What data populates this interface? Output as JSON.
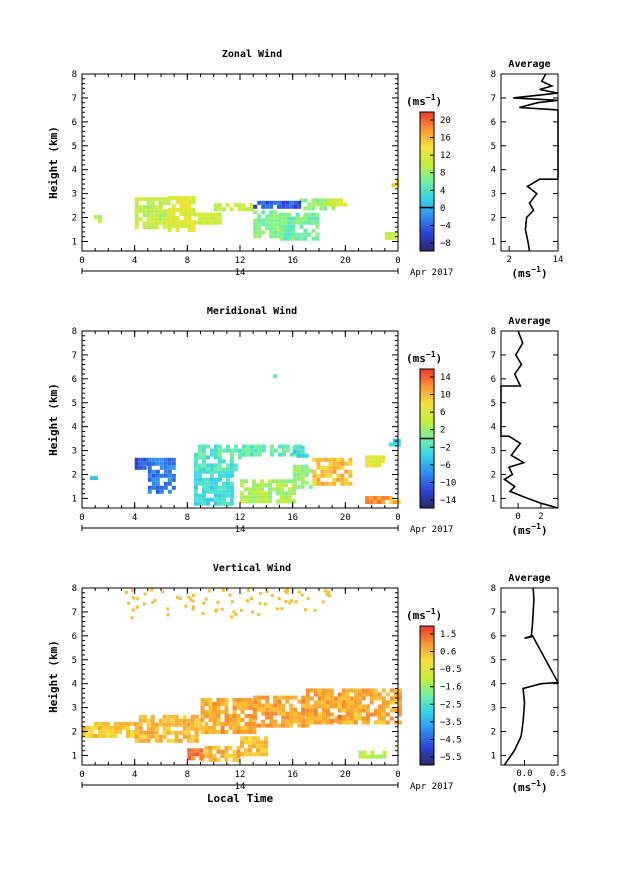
{
  "chart_data": [
    {
      "type": "heatmap",
      "title": "Zonal Wind",
      "ylabel": "Height (km)",
      "xlabel": "",
      "xlim": [
        0,
        24
      ],
      "ylim": [
        0.6,
        8
      ],
      "x_ticks": [
        "0",
        "4",
        "8",
        "12",
        "16",
        "20",
        "0"
      ],
      "y_ticks": [
        "1",
        "2",
        "3",
        "4",
        "5",
        "6",
        "7",
        "8"
      ],
      "date_label": "14",
      "month_label": "Apr 2017",
      "colorbar": {
        "unit": "(ms",
        "unit_exp": "−1",
        "ticks": [
          "20",
          "16",
          "12",
          "8",
          "4",
          "0",
          "−4",
          "−8"
        ],
        "range": [
          -10,
          22
        ],
        "zero_line": 0
      },
      "average": {
        "title": "Average",
        "xlabel": "(ms",
        "xlabel_exp": "−1",
        "x_ticks": [
          "2",
          "14"
        ],
        "xlim": [
          0,
          14
        ],
        "profile": [
          [
            7.0,
            0.6
          ],
          [
            6.6,
            1.0
          ],
          [
            6.0,
            1.5
          ],
          [
            6.3,
            2.0
          ],
          [
            8.0,
            2.3
          ],
          [
            7.0,
            2.6
          ],
          [
            8.8,
            3.0
          ],
          [
            6.5,
            3.3
          ],
          [
            9.5,
            3.6
          ],
          [
            14,
            3.6
          ],
          [
            14,
            6.5
          ],
          [
            4.5,
            6.6
          ],
          [
            9.0,
            6.8
          ],
          [
            14,
            6.9
          ],
          [
            3.0,
            7.0
          ],
          [
            14,
            7.2
          ],
          [
            9.5,
            7.35
          ],
          [
            12.5,
            7.5
          ],
          [
            10.0,
            7.7
          ],
          [
            11.0,
            8.0
          ]
        ]
      },
      "patches": [
        {
          "t0": 0.9,
          "t1": 1.5,
          "h0": 1.9,
          "h1": 2.1,
          "value": 9
        },
        {
          "t0": 4.0,
          "t1": 6.5,
          "h0": 1.6,
          "h1": 2.85,
          "value": 10
        },
        {
          "t0": 6.5,
          "t1": 8.5,
          "h0": 1.5,
          "h1": 2.9,
          "value": 12
        },
        {
          "t0": 8.5,
          "t1": 10.5,
          "h0": 1.8,
          "h1": 2.2,
          "value": 11
        },
        {
          "t0": 10.0,
          "t1": 13.0,
          "h0": 2.3,
          "h1": 2.6,
          "value": 10
        },
        {
          "t0": 13.0,
          "t1": 15.0,
          "h0": 1.2,
          "h1": 2.3,
          "value": 7
        },
        {
          "t0": 15.0,
          "t1": 18.0,
          "h0": 1.1,
          "h1": 2.2,
          "value": 6
        },
        {
          "t0": 16.5,
          "t1": 19.0,
          "h0": 2.4,
          "h1": 2.8,
          "value": 7
        },
        {
          "t0": 18.0,
          "t1": 20.0,
          "h0": 2.5,
          "h1": 2.8,
          "value": 11
        },
        {
          "t0": 13.0,
          "t1": 16.5,
          "h0": 2.4,
          "h1": 2.7,
          "value": -5
        },
        {
          "t0": 23.0,
          "t1": 23.8,
          "h0": 1.1,
          "h1": 1.4,
          "value": 11
        },
        {
          "t0": 23.5,
          "t1": 24.0,
          "h0": 3.3,
          "h1": 3.6,
          "value": 15
        }
      ]
    },
    {
      "type": "heatmap",
      "title": "Meridional Wind",
      "ylabel": "Height (km)",
      "xlabel": "",
      "xlim": [
        0,
        24
      ],
      "ylim": [
        0.6,
        8
      ],
      "x_ticks": [
        "0",
        "4",
        "8",
        "12",
        "16",
        "20",
        "0"
      ],
      "y_ticks": [
        "1",
        "2",
        "3",
        "4",
        "5",
        "6",
        "7",
        "8"
      ],
      "date_label": "14",
      "month_label": "Apr 2017",
      "colorbar": {
        "unit": "(ms",
        "unit_exp": "−1",
        "ticks": [
          "14",
          "10",
          "6",
          "2",
          "−2",
          "−6",
          "−10",
          "−14"
        ],
        "range": [
          -16,
          16
        ],
        "zero_line": 0
      },
      "average": {
        "title": "Average",
        "xlabel": "(ms",
        "xlabel_exp": "−1",
        "x_ticks": [
          "0",
          "2"
        ],
        "xlim": [
          -1.5,
          3.5
        ],
        "profile": [
          [
            3.5,
            0.6
          ],
          [
            2.0,
            0.8
          ],
          [
            0.3,
            1.1
          ],
          [
            -0.7,
            1.3
          ],
          [
            -0.3,
            1.5
          ],
          [
            -1.2,
            1.8
          ],
          [
            -0.5,
            2.0
          ],
          [
            -0.8,
            2.3
          ],
          [
            0.5,
            2.5
          ],
          [
            -0.6,
            2.8
          ],
          [
            -0.3,
            3.0
          ],
          [
            0.2,
            3.3
          ],
          [
            -0.8,
            3.6
          ],
          [
            -1.5,
            3.6
          ],
          [
            -1.5,
            5.7
          ],
          [
            0.2,
            5.7
          ],
          [
            -0.3,
            6.2
          ],
          [
            0.3,
            6.6
          ],
          [
            -0.2,
            7.0
          ],
          [
            0.4,
            7.5
          ],
          [
            0.0,
            8.0
          ]
        ]
      },
      "patches": [
        {
          "t0": 0.6,
          "t1": 1.2,
          "h0": 1.8,
          "h1": 2.1,
          "value": -6
        },
        {
          "t0": 4.0,
          "t1": 5.0,
          "h0": 2.2,
          "h1": 2.7,
          "value": -11
        },
        {
          "t0": 5.0,
          "t1": 7.0,
          "h0": 1.3,
          "h1": 2.7,
          "value": -9
        },
        {
          "t0": 8.5,
          "t1": 11.5,
          "h0": 0.8,
          "h1": 2.2,
          "value": -3
        },
        {
          "t0": 8.5,
          "t1": 12.0,
          "h0": 2.2,
          "h1": 2.8,
          "value": -2
        },
        {
          "t0": 8.5,
          "t1": 16.5,
          "h0": 2.8,
          "h1": 3.25,
          "value": -1
        },
        {
          "t0": 12.0,
          "t1": 16.0,
          "h0": 0.8,
          "h1": 1.8,
          "value": 3
        },
        {
          "t0": 16.0,
          "t1": 17.5,
          "h0": 1.5,
          "h1": 2.4,
          "value": 2
        },
        {
          "t0": 17.5,
          "t1": 20.5,
          "h0": 1.6,
          "h1": 2.7,
          "value": 10
        },
        {
          "t0": 16.0,
          "t1": 17.0,
          "h0": 2.8,
          "h1": 3.2,
          "value": -3
        },
        {
          "t0": 21.5,
          "t1": 23.0,
          "h0": 2.4,
          "h1": 2.8,
          "value": 6
        },
        {
          "t0": 21.5,
          "t1": 23.3,
          "h0": 0.8,
          "h1": 1.1,
          "value": 12
        },
        {
          "t0": 23.3,
          "t1": 24.0,
          "h0": 0.8,
          "h1": 1.1,
          "value": 10
        },
        {
          "t0": 14.5,
          "t1": 14.7,
          "h0": 6.1,
          "h1": 6.2,
          "value": 0
        },
        {
          "t0": 23.3,
          "t1": 24.0,
          "h0": 3.3,
          "h1": 3.5,
          "value": -3
        }
      ]
    },
    {
      "type": "heatmap",
      "title": "Vertical Wind",
      "ylabel": "Height (km)",
      "xlabel": "Local Time",
      "xlim": [
        0,
        24
      ],
      "ylim": [
        0.6,
        8
      ],
      "x_ticks": [
        "0",
        "4",
        "8",
        "12",
        "16",
        "20",
        "0"
      ],
      "y_ticks": [
        "1",
        "2",
        "3",
        "4",
        "5",
        "6",
        "7",
        "8"
      ],
      "date_label": "14",
      "month_label": "Apr 2017",
      "colorbar": {
        "unit": "(ms",
        "unit_exp": "−1",
        "ticks": [
          "1.5",
          "0.6",
          "−0.5",
          "−1.6",
          "−2.5",
          "−3.5",
          "−4.5",
          "−5.5"
        ],
        "range": [
          -6,
          2
        ],
        "zero_line": null
      },
      "average": {
        "title": "Average",
        "xlabel": "(ms",
        "xlabel_exp": "−1",
        "x_ticks": [
          "0.0",
          "0.5"
        ],
        "xlim": [
          -0.35,
          0.5
        ],
        "profile": [
          [
            -0.3,
            0.6
          ],
          [
            -0.25,
            0.8
          ],
          [
            -0.15,
            1.2
          ],
          [
            -0.05,
            1.8
          ],
          [
            -0.02,
            2.4
          ],
          [
            0.0,
            3.2
          ],
          [
            -0.02,
            3.8
          ],
          [
            0.25,
            4.0
          ],
          [
            0.5,
            4.05
          ],
          [
            0.12,
            6.0
          ],
          [
            0.0,
            5.9
          ],
          [
            0.1,
            5.95
          ],
          [
            0.12,
            6.5
          ],
          [
            0.14,
            7.5
          ],
          [
            0.13,
            8.0
          ]
        ]
      },
      "patches": [
        {
          "t0": 0.0,
          "t1": 4.0,
          "h0": 1.8,
          "h1": 2.4,
          "value": 0.3
        },
        {
          "t0": 4.0,
          "t1": 9.0,
          "h0": 1.6,
          "h1": 2.7,
          "value": 0.5
        },
        {
          "t0": 9.0,
          "t1": 13.0,
          "h0": 2.0,
          "h1": 3.4,
          "value": 0.7
        },
        {
          "t0": 9.0,
          "t1": 12.0,
          "h0": 0.8,
          "h1": 1.4,
          "value": 0.6
        },
        {
          "t0": 13.0,
          "t1": 17.0,
          "h0": 2.2,
          "h1": 3.5,
          "value": 0.8
        },
        {
          "t0": 17.0,
          "t1": 24.0,
          "h0": 2.4,
          "h1": 3.8,
          "value": 0.7
        },
        {
          "t0": 18.5,
          "t1": 20.0,
          "h0": 2.4,
          "h1": 2.7,
          "value": 1.3
        },
        {
          "t0": 12.0,
          "t1": 14.0,
          "h0": 1.0,
          "h1": 1.8,
          "value": 0.4
        },
        {
          "t0": 21.0,
          "t1": 23.0,
          "h0": 0.9,
          "h1": 1.2,
          "value": -1.2
        },
        {
          "t0": 8.0,
          "t1": 9.0,
          "h0": 0.9,
          "h1": 1.3,
          "value": 1.2
        }
      ],
      "scatter_region": {
        "t0": 3.0,
        "t1": 19.0,
        "h0": 6.8,
        "h1": 8.0,
        "value": 0.5
      }
    }
  ]
}
